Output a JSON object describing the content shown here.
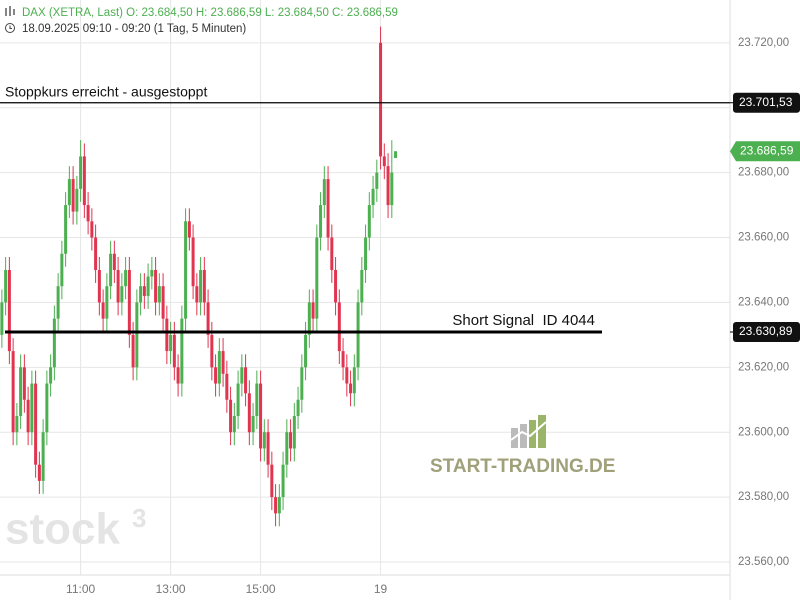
{
  "chart_data": {
    "type": "candlestick",
    "title": "DAX (XETRA, Last)  O: 23.684,50  H: 23.686,59  L: 23.684,50  C: 23.686,59",
    "subtitle": "18.09.2025 09:10 - 09:20  (1 Tag, 5 Minuten)",
    "watermark": "stock",
    "watermark_sup": "3",
    "logo": "START-TRADING.DE",
    "up_color": "#4caf50",
    "down_color": "#e0344f",
    "grid": true,
    "xlim": [
      -0.5,
      194.2
    ],
    "xticks": [
      {
        "value": 21,
        "label": "11:00"
      },
      {
        "value": 45,
        "label": "13:00"
      },
      {
        "value": 69,
        "label": "15:00"
      },
      {
        "value": 101,
        "label": "19"
      }
    ],
    "ylim": [
      23556,
      23733.2
    ],
    "yticks": [
      {
        "value": 23560,
        "label": "23.560,00"
      },
      {
        "value": 23580,
        "label": "23.580,00"
      },
      {
        "value": 23600,
        "label": "23.600,00"
      },
      {
        "value": 23620,
        "label": "23.620,00"
      },
      {
        "value": 23640,
        "label": "23.640,00"
      },
      {
        "value": 23660,
        "label": "23.660,00"
      },
      {
        "value": 23680,
        "label": "23.680,00"
      },
      {
        "value": 23700,
        "label": "23.700,00"
      },
      {
        "value": 23720,
        "label": "23.720,00"
      }
    ],
    "lines": [
      {
        "value": 23701.53,
        "label": "Stoppkurs erreicht - ausgestoppt",
        "tag": "23.701,53"
      },
      {
        "value": 23630.89,
        "label": "Short Signal  ID 4044",
        "tag": "23.630,89"
      }
    ],
    "last_price": {
      "value": 23686.59,
      "label": "23.686,59"
    },
    "open": [
      23630,
      23640,
      23650,
      23625,
      23600,
      23605,
      23620,
      23610,
      23600,
      23615,
      23590,
      23585,
      23600,
      23615,
      23620,
      23635,
      23645,
      23655,
      23670,
      23678,
      23668,
      23675,
      23685,
      23670,
      23665,
      23660,
      23650,
      23640,
      23635,
      23645,
      23655,
      23650,
      23640,
      23645,
      23650,
      23630,
      23620,
      23640,
      23645,
      23642,
      23648,
      23650,
      23640,
      23645,
      23635,
      23625,
      23630,
      23620,
      23615,
      23635,
      23665,
      23660,
      23645,
      23640,
      23650,
      23640,
      23630,
      23620,
      23615,
      23625,
      23618,
      23610,
      23600,
      23605,
      23615,
      23620,
      23612,
      23600,
      23605,
      23615,
      23595,
      23600,
      23590,
      23580,
      23575,
      23580,
      23590,
      23600,
      23595,
      23605,
      23610,
      23620,
      23630,
      23640,
      23635,
      23660,
      23670,
      23678,
      23660,
      23650,
      23640,
      23625,
      23620,
      23615,
      23612,
      23620,
      23640,
      23650,
      23660,
      23670,
      23675,
      23720,
      23685,
      23682,
      23670,
      23684.5
    ],
    "high": [
      23644,
      23654,
      23654,
      23629,
      23609,
      23624,
      23624,
      23614,
      23619,
      23619,
      23594,
      23604,
      23619,
      23624,
      23639,
      23649,
      23659,
      23674,
      23682,
      23682,
      23679,
      23690,
      23689,
      23674,
      23669,
      23664,
      23654,
      23644,
      23649,
      23659,
      23659,
      23654,
      23649,
      23654,
      23654,
      23634,
      23644,
      23649,
      23649,
      23652,
      23654,
      23654,
      23649,
      23649,
      23639,
      23634,
      23634,
      23624,
      23639,
      23669,
      23669,
      23664,
      23649,
      23654,
      23654,
      23644,
      23634,
      23624,
      23629,
      23629,
      23622,
      23614,
      23609,
      23619,
      23624,
      23624,
      23616,
      23609,
      23619,
      23619,
      23604,
      23604,
      23594,
      23584,
      23584,
      23594,
      23604,
      23604,
      23609,
      23614,
      23624,
      23634,
      23644,
      23644,
      23664,
      23674,
      23682,
      23682,
      23664,
      23654,
      23644,
      23629,
      23624,
      23619,
      23624,
      23644,
      23654,
      23664,
      23674,
      23679,
      23684,
      23725,
      23689,
      23686,
      23690,
      23686.59
    ],
    "low": [
      23626,
      23636,
      23621,
      23596,
      23596,
      23601,
      23606,
      23596,
      23596,
      23586,
      23581,
      23581,
      23596,
      23611,
      23616,
      23631,
      23641,
      23651,
      23666,
      23664,
      23664,
      23671,
      23666,
      23661,
      23656,
      23646,
      23636,
      23631,
      23631,
      23641,
      23646,
      23636,
      23636,
      23641,
      23626,
      23616,
      23616,
      23636,
      23638,
      23638,
      23644,
      23636,
      23636,
      23631,
      23621,
      23621,
      23616,
      23611,
      23611,
      23631,
      23656,
      23641,
      23636,
      23636,
      23636,
      23626,
      23616,
      23611,
      23611,
      23614,
      23606,
      23596,
      23596,
      23601,
      23611,
      23608,
      23596,
      23596,
      23601,
      23591,
      23591,
      23586,
      23576,
      23571,
      23571,
      23576,
      23586,
      23591,
      23591,
      23601,
      23606,
      23616,
      23626,
      23631,
      23631,
      23656,
      23666,
      23656,
      23646,
      23636,
      23621,
      23616,
      23611,
      23608,
      23608,
      23616,
      23636,
      23646,
      23656,
      23666,
      23671,
      23681,
      23678,
      23666,
      23666,
      23684.5
    ],
    "close": [
      23640,
      23650,
      23625,
      23600,
      23605,
      23620,
      23610,
      23600,
      23615,
      23590,
      23585,
      23600,
      23615,
      23620,
      23635,
      23645,
      23655,
      23670,
      23678,
      23668,
      23675,
      23685,
      23670,
      23665,
      23660,
      23650,
      23640,
      23635,
      23645,
      23655,
      23650,
      23640,
      23645,
      23650,
      23630,
      23620,
      23640,
      23645,
      23642,
      23648,
      23650,
      23640,
      23645,
      23635,
      23625,
      23630,
      23620,
      23615,
      23635,
      23665,
      23660,
      23645,
      23640,
      23650,
      23640,
      23630,
      23620,
      23615,
      23625,
      23618,
      23610,
      23600,
      23605,
      23615,
      23620,
      23612,
      23600,
      23605,
      23615,
      23595,
      23600,
      23590,
      23580,
      23575,
      23580,
      23590,
      23600,
      23595,
      23605,
      23610,
      23620,
      23630,
      23640,
      23635,
      23660,
      23670,
      23678,
      23660,
      23650,
      23640,
      23625,
      23620,
      23615,
      23612,
      23620,
      23640,
      23650,
      23660,
      23670,
      23675,
      23680,
      23685,
      23682,
      23670,
      23680,
      23686.59
    ]
  }
}
